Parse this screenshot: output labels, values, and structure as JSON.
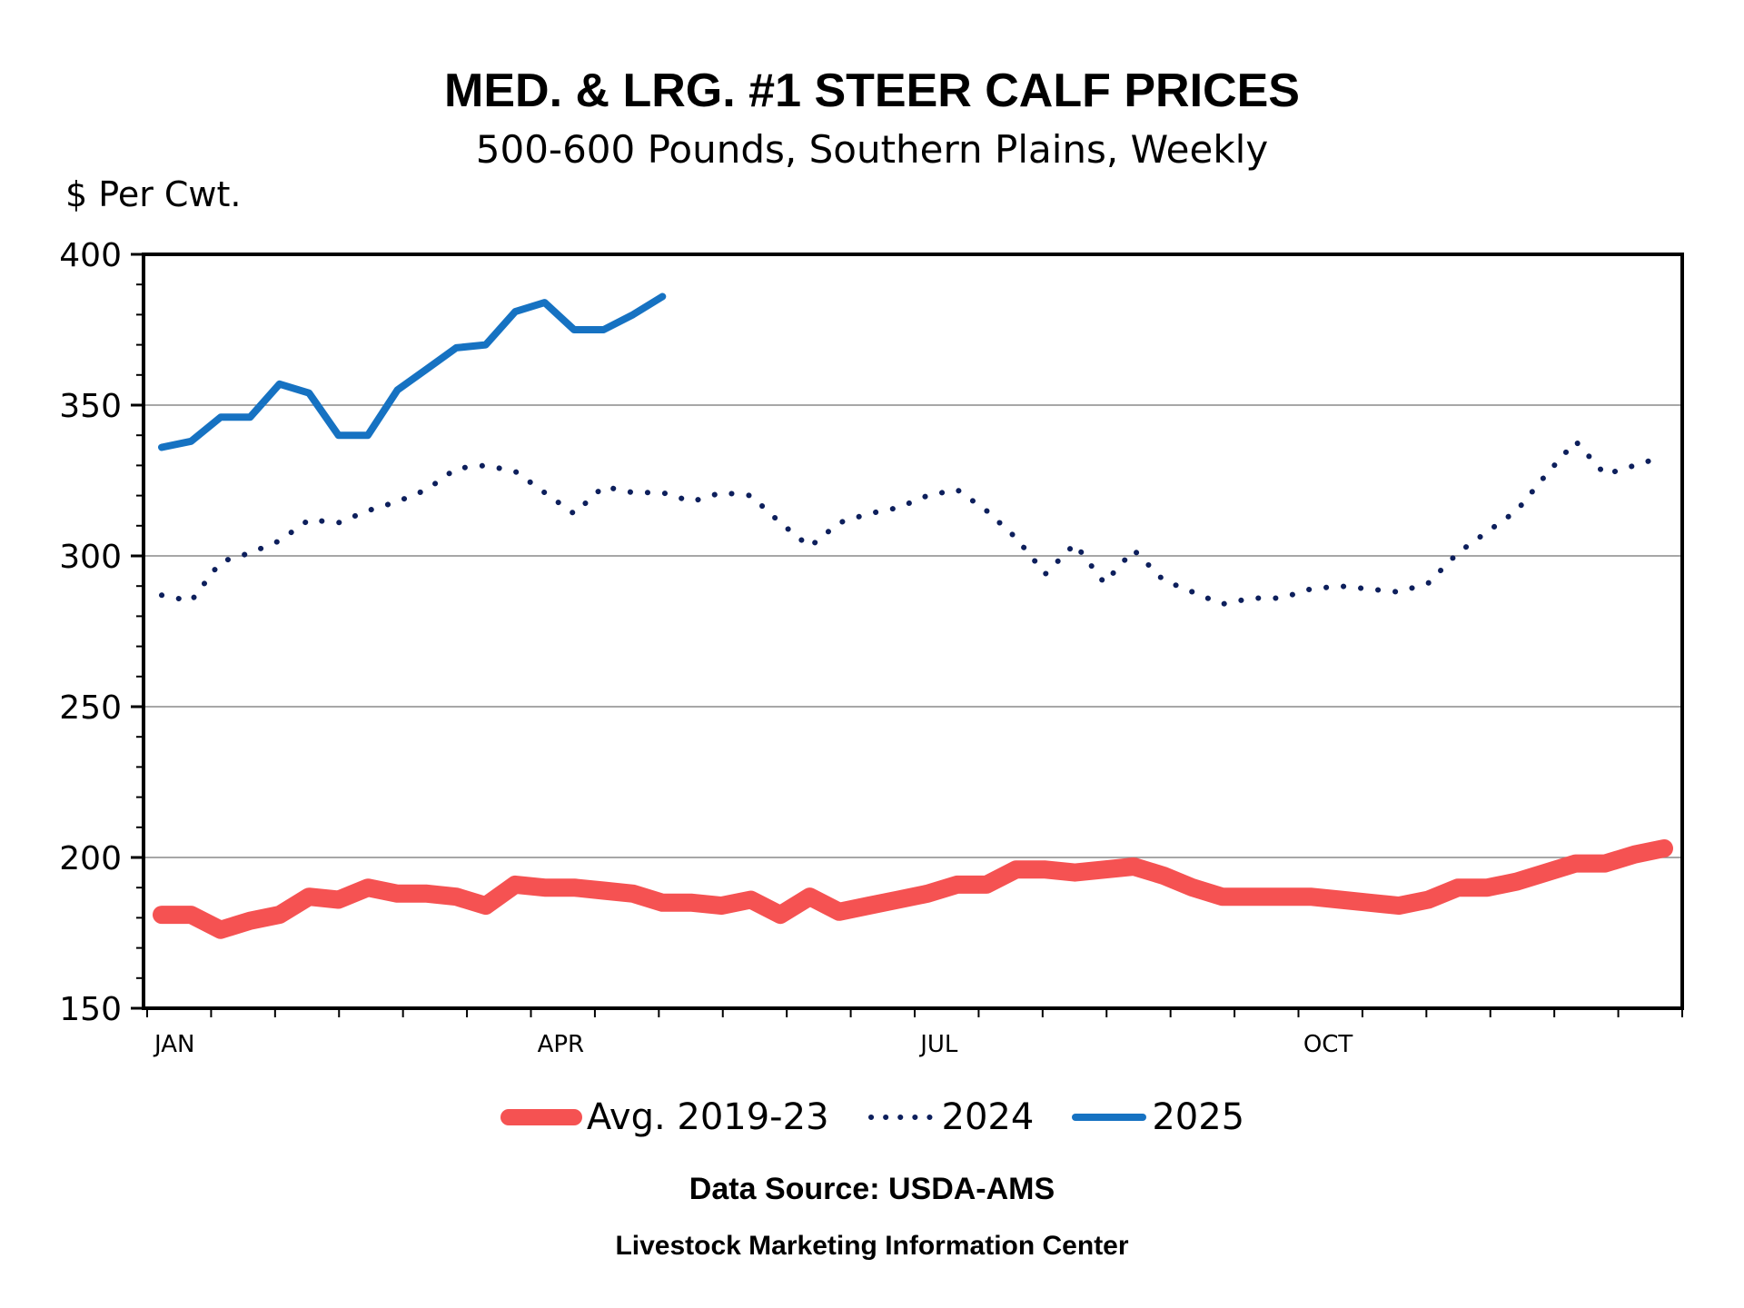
{
  "chart_data": {
    "type": "line",
    "title": "MED. & LRG. #1 STEER CALF PRICES",
    "subtitle": "500-600 Pounds, Southern Plains, Weekly",
    "ylabel": "$ Per Cwt.",
    "xlabel": "",
    "ylim": [
      150,
      400
    ],
    "yticks": [
      150,
      200,
      250,
      300,
      350,
      400
    ],
    "xticks": [
      {
        "label": "JAN",
        "week": 0
      },
      {
        "label": "APR",
        "week": 13
      },
      {
        "label": "JUL",
        "week": 26
      },
      {
        "label": "OCT",
        "week": 39
      }
    ],
    "grid": true,
    "legend_position": "bottom",
    "series": [
      {
        "name": "Avg. 2019-23",
        "color": "#f55252",
        "style": "solid-thick",
        "values": [
          181,
          181,
          176,
          179,
          181,
          187,
          186,
          190,
          188,
          188,
          187,
          184,
          191,
          190,
          190,
          189,
          188,
          185,
          185,
          184,
          186,
          181,
          187,
          182,
          184,
          186,
          188,
          191,
          191,
          196,
          196,
          195,
          196,
          197,
          194,
          190,
          187,
          187,
          187,
          187,
          186,
          185,
          184,
          186,
          190,
          190,
          192,
          195,
          198,
          198,
          201,
          203
        ]
      },
      {
        "name": "2024",
        "color": "#0d1f5c",
        "style": "dotted",
        "values": [
          287,
          285,
          298,
          301,
          305,
          312,
          311,
          315,
          318,
          322,
          329,
          330,
          328,
          321,
          314,
          323,
          321,
          321,
          318,
          321,
          320,
          311,
          303,
          311,
          314,
          316,
          320,
          322,
          315,
          306,
          294,
          304,
          291,
          302,
          292,
          288,
          284,
          286,
          286,
          289,
          290,
          289,
          288,
          291,
          301,
          308,
          315,
          327,
          338,
          327,
          330,
          333
        ]
      },
      {
        "name": "2025",
        "color": "#1672c2",
        "style": "solid",
        "values": [
          336,
          338,
          346,
          346,
          357,
          354,
          340,
          340,
          355,
          362,
          369,
          370,
          381,
          384,
          375,
          375,
          380,
          386
        ]
      }
    ]
  },
  "source": "Data Source:  USDA-AMS",
  "credit": "Livestock Marketing Information Center"
}
